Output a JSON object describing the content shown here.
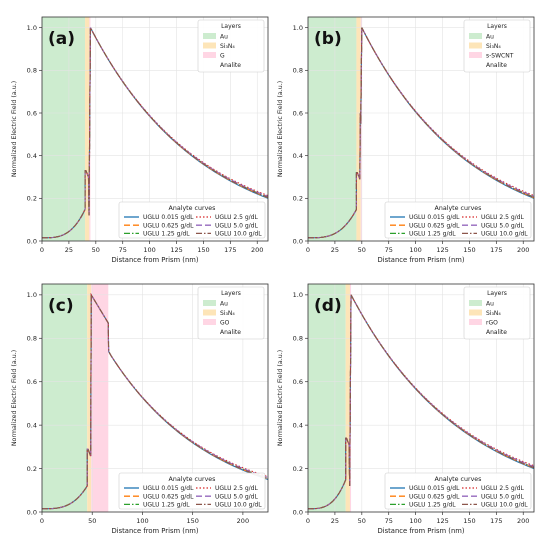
{
  "chart_data": [
    {
      "type": "line",
      "panel_label": "(a)",
      "xlabel": "Distance from Prism (nm)",
      "ylabel": "Normalized Electric Field (a.u.)",
      "xlim": [
        0,
        210
      ],
      "ylim": [
        0,
        1.05
      ],
      "xticks": [
        0,
        25,
        50,
        75,
        100,
        125,
        150,
        175,
        200
      ],
      "yticks": [
        0.0,
        0.2,
        0.4,
        0.6,
        0.8,
        1.0
      ],
      "grid": true,
      "layers_legend": {
        "title": "Layers",
        "placement": "top-right",
        "entries": [
          "Au",
          "Si₃N₄",
          "G",
          "Analite"
        ]
      },
      "layers": [
        {
          "name": "Au",
          "from": 0,
          "to": 40,
          "color": "#cdeccf"
        },
        {
          "name": "Si₃N₄",
          "from": 40,
          "to": 44,
          "color": "#fde5b8"
        },
        {
          "name": "G",
          "from": 44,
          "to": 45,
          "color": "#ffd6e4"
        }
      ],
      "profile": {
        "start": 0.015,
        "peak_at_metal": 0.148,
        "jump_top": 0.33,
        "jump_bottom": 0.3,
        "drop_to": 0.12,
        "max_x": 45,
        "max_y": 1.0,
        "ri_end": 45,
        "ri_end_y": 1.0,
        "x_end": 210,
        "y_end": 0.2
      },
      "analyte_legend": {
        "title": "Analyte curves",
        "placement": "lower-right"
      },
      "series": [
        {
          "name": "UGLU 0.015 g/dL",
          "end_offset": 0.0,
          "color": "#1f77b4",
          "dash": ""
        },
        {
          "name": "UGLU 0.625 g/dL",
          "end_offset": 0.003,
          "color": "#ff7f0e",
          "dash": "6,3"
        },
        {
          "name": "UGLU 1.25 g/dL",
          "end_offset": 0.006,
          "color": "#2ca02c",
          "dash": "6,2,1.5,2"
        },
        {
          "name": "UGLU 2.5 g/dL",
          "end_offset": 0.013,
          "color": "#d62728",
          "dash": "1.5,2"
        },
        {
          "name": "UGLU 5.0 g/dL",
          "end_offset": 0.009,
          "color": "#9467bd",
          "dash": "6,3"
        },
        {
          "name": "UGLU 10.0 g/dL",
          "end_offset": 0.004,
          "color": "#8c564b",
          "dash": "6,2,1.5,2"
        }
      ]
    },
    {
      "type": "line",
      "panel_label": "(b)",
      "xlabel": "Distance from Prism (nm)",
      "ylabel": "Normalized Electric Field (a.u.)",
      "xlim": [
        0,
        210
      ],
      "ylim": [
        0,
        1.05
      ],
      "xticks": [
        0,
        25,
        50,
        75,
        100,
        125,
        150,
        175,
        200
      ],
      "yticks": [
        0.0,
        0.2,
        0.4,
        0.6,
        0.8,
        1.0
      ],
      "grid": true,
      "layers_legend": {
        "title": "Layers",
        "placement": "top-right",
        "entries": [
          "Au",
          "Si₃N₄",
          "s-SWCNT",
          "Analite"
        ]
      },
      "layers": [
        {
          "name": "Au",
          "from": 0,
          "to": 45,
          "color": "#cdeccf"
        },
        {
          "name": "Si₃N₄",
          "from": 45,
          "to": 49,
          "color": "#fde5b8"
        },
        {
          "name": "s-SWCNT",
          "from": 49,
          "to": 50,
          "color": "#ffd6e4"
        }
      ],
      "profile": {
        "start": 0.015,
        "peak_at_metal": 0.148,
        "jump_top": 0.32,
        "jump_bottom": 0.29,
        "drop_to": 0.55,
        "max_x": 50,
        "max_y": 1.0,
        "ri_end": 50,
        "ri_end_y": 1.0,
        "x_end": 210,
        "y_end": 0.2,
        "mid_x": 49,
        "mid_top": 0.6
      },
      "analyte_legend": {
        "title": "Analyte curves",
        "placement": "lower-right"
      },
      "series": [
        {
          "name": "UGLU 0.015 g/dL",
          "end_offset": 0.0,
          "color": "#1f77b4",
          "dash": ""
        },
        {
          "name": "UGLU 0.625 g/dL",
          "end_offset": 0.003,
          "color": "#ff7f0e",
          "dash": "6,3"
        },
        {
          "name": "UGLU 1.25 g/dL",
          "end_offset": 0.006,
          "color": "#2ca02c",
          "dash": "6,2,1.5,2"
        },
        {
          "name": "UGLU 2.5 g/dL",
          "end_offset": 0.013,
          "color": "#d62728",
          "dash": "1.5,2"
        },
        {
          "name": "UGLU 5.0 g/dL",
          "end_offset": 0.009,
          "color": "#9467bd",
          "dash": "6,3"
        },
        {
          "name": "UGLU 10.0 g/dL",
          "end_offset": 0.004,
          "color": "#8c564b",
          "dash": "6,2,1.5,2"
        }
      ]
    },
    {
      "type": "line",
      "panel_label": "(c)",
      "xlabel": "Distance from Prism (nm)",
      "ylabel": "Normalized Electric Field (a.u.)",
      "xlim": [
        0,
        225
      ],
      "ylim": [
        0,
        1.05
      ],
      "xticks": [
        0,
        50,
        100,
        150,
        200
      ],
      "yticks": [
        0.0,
        0.2,
        0.4,
        0.6,
        0.8,
        1.0
      ],
      "grid": true,
      "layers_legend": {
        "title": "Layers",
        "placement": "top-right",
        "entries": [
          "Au",
          "Si₃N₄",
          "GO",
          "Analite"
        ]
      },
      "layers": [
        {
          "name": "Au",
          "from": 0,
          "to": 45,
          "color": "#cdeccf"
        },
        {
          "name": "Si₃N₄",
          "from": 45,
          "to": 49,
          "color": "#fde5b8"
        },
        {
          "name": "GO",
          "from": 49,
          "to": 66,
          "color": "#ffd6e4"
        }
      ],
      "profile": {
        "start": 0.015,
        "peak_at_metal": 0.12,
        "jump_top": 0.29,
        "jump_bottom": 0.26,
        "drop_to": 0.0,
        "max_x": 49,
        "max_y": 1.0,
        "ri_end": 66,
        "ri_end_y": 0.87,
        "after_ri": 0.74,
        "x_end": 225,
        "y_end": 0.15
      },
      "analyte_legend": {
        "title": "Analyte curves",
        "placement": "lower-right"
      },
      "series": [
        {
          "name": "UGLU 0.015 g/dL",
          "end_offset": 0.0,
          "color": "#1f77b4",
          "dash": ""
        },
        {
          "name": "UGLU 0.625 g/dL",
          "end_offset": 0.003,
          "color": "#ff7f0e",
          "dash": "6,3"
        },
        {
          "name": "UGLU 1.25 g/dL",
          "end_offset": 0.006,
          "color": "#2ca02c",
          "dash": "6,2,1.5,2"
        },
        {
          "name": "UGLU 2.5 g/dL",
          "end_offset": 0.013,
          "color": "#d62728",
          "dash": "1.5,2"
        },
        {
          "name": "UGLU 5.0 g/dL",
          "end_offset": 0.009,
          "color": "#9467bd",
          "dash": "6,3"
        },
        {
          "name": "UGLU 10.0 g/dL",
          "end_offset": 0.004,
          "color": "#8c564b",
          "dash": "6,2,1.5,2"
        }
      ]
    },
    {
      "type": "line",
      "panel_label": "(d)",
      "xlabel": "Distance from Prism (nm)",
      "ylabel": "Normalized Electric Field (a.u.)",
      "xlim": [
        0,
        210
      ],
      "ylim": [
        0,
        1.05
      ],
      "xticks": [
        0,
        25,
        50,
        75,
        100,
        125,
        150,
        175,
        200
      ],
      "yticks": [
        0.0,
        0.2,
        0.4,
        0.6,
        0.8,
        1.0
      ],
      "grid": true,
      "layers_legend": {
        "title": "Layers",
        "placement": "top-right",
        "entries": [
          "Au",
          "Si₃N₄",
          "rGO",
          "Analite"
        ]
      },
      "layers": [
        {
          "name": "Au",
          "from": 0,
          "to": 35,
          "color": "#cdeccf"
        },
        {
          "name": "Si₃N₄",
          "from": 35,
          "to": 39,
          "color": "#fde5b8"
        },
        {
          "name": "rGO",
          "from": 39,
          "to": 40,
          "color": "#ffd6e4"
        }
      ],
      "profile": {
        "start": 0.015,
        "peak_at_metal": 0.148,
        "jump_top": 0.34,
        "jump_bottom": 0.31,
        "drop_to": 0.12,
        "max_x": 40,
        "max_y": 1.0,
        "ri_end": 40,
        "ri_end_y": 1.0,
        "x_end": 210,
        "y_end": 0.2
      },
      "analyte_legend": {
        "title": "Analyte curves",
        "placement": "lower-right"
      },
      "series": [
        {
          "name": "UGLU 0.015 g/dL",
          "end_offset": 0.0,
          "color": "#1f77b4",
          "dash": ""
        },
        {
          "name": "UGLU 0.625 g/dL",
          "end_offset": 0.003,
          "color": "#ff7f0e",
          "dash": "6,3"
        },
        {
          "name": "UGLU 1.25 g/dL",
          "end_offset": 0.006,
          "color": "#2ca02c",
          "dash": "6,2,1.5,2"
        },
        {
          "name": "UGLU 2.5 g/dL",
          "end_offset": 0.013,
          "color": "#d62728",
          "dash": "1.5,2"
        },
        {
          "name": "UGLU 5.0 g/dL",
          "end_offset": 0.009,
          "color": "#9467bd",
          "dash": "6,3"
        },
        {
          "name": "UGLU 10.0 g/dL",
          "end_offset": 0.004,
          "color": "#8c564b",
          "dash": "6,2,1.5,2"
        }
      ]
    }
  ]
}
